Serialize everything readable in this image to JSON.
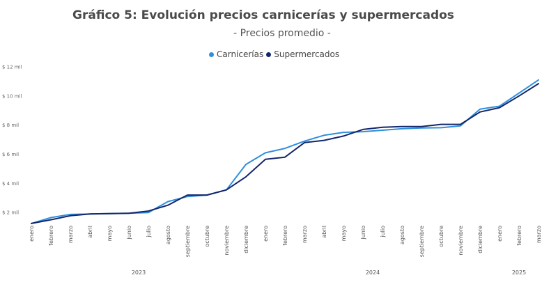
{
  "chart_data": {
    "type": "line",
    "title": "Gráfico 5: Evolución precios carnicerías y supermercados",
    "subtitle": "- Precios promedio -",
    "xlabel": "",
    "ylabel": "",
    "ylim": [
      0,
      12000
    ],
    "yticks": [
      {
        "value": 2000,
        "label": "$ 2 mil"
      },
      {
        "value": 4000,
        "label": "$ 4 mil"
      },
      {
        "value": 6000,
        "label": "$ 6 mil"
      },
      {
        "value": 8000,
        "label": "$ 8 mil"
      },
      {
        "value": 10000,
        "label": "$ 10 mil"
      },
      {
        "value": 12000,
        "label": "$ 12 mil"
      }
    ],
    "categories": [
      "enero",
      "febrero",
      "marzo",
      "abril",
      "mayo",
      "junio",
      "julio",
      "agosto",
      "septiembre",
      "octubre",
      "noviembre",
      "diciembre",
      "enero",
      "febrero",
      "marzo",
      "abril",
      "mayo",
      "junio",
      "julio",
      "agosto",
      "septiembre",
      "octubre",
      "noviembre",
      "diciembre",
      "enero",
      "febrero",
      "marzo"
    ],
    "years": [
      {
        "label": "2023",
        "start": 0,
        "end": 11
      },
      {
        "label": "2024",
        "start": 12,
        "end": 23
      },
      {
        "label": "2025",
        "start": 24,
        "end": 26
      }
    ],
    "legend_position": "top-center",
    "series": [
      {
        "name": "Carnicerías",
        "color": "#2f8fdb",
        "values": [
          1250,
          1650,
          1870,
          1900,
          1920,
          1950,
          2000,
          2750,
          3100,
          3200,
          3550,
          5300,
          6100,
          6400,
          6900,
          7300,
          7500,
          7550,
          7650,
          7750,
          7800,
          7820,
          7950,
          9100,
          9300,
          10200,
          11100
        ]
      },
      {
        "name": "Supermercados",
        "color": "#13266b",
        "values": [
          1250,
          1500,
          1780,
          1900,
          1920,
          1950,
          2100,
          2500,
          3200,
          3200,
          3550,
          4450,
          5650,
          5800,
          6800,
          6950,
          7250,
          7700,
          7850,
          7900,
          7900,
          8050,
          8050,
          8900,
          9200,
          10000,
          10850
        ]
      }
    ]
  }
}
